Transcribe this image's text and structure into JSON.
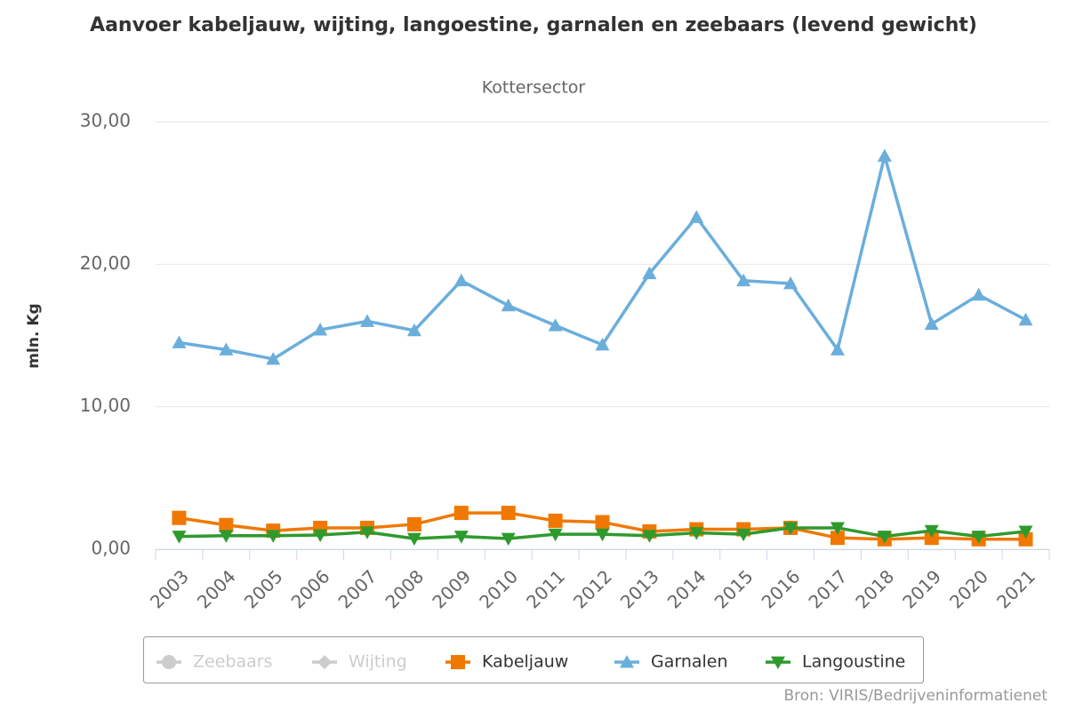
{
  "chart_data": {
    "type": "line",
    "title": "Aanvoer kabeljauw, wijting, langoestine, garnalen en zeebaars (levend gewicht)",
    "subtitle": "Kottersector",
    "y_label": "mln. Kg",
    "source": "Bron: VIRIS/Bedrijveninformatienet",
    "categories": [
      "2003",
      "2004",
      "2005",
      "2006",
      "2007",
      "2008",
      "2009",
      "2010",
      "2011",
      "2012",
      "2013",
      "2014",
      "2015",
      "2016",
      "2017",
      "2018",
      "2019",
      "2020",
      "2021"
    ],
    "ylim": [
      0,
      30
    ],
    "yticks": [
      {
        "value": 0,
        "label": "0,00"
      },
      {
        "value": 10,
        "label": "10,00"
      },
      {
        "value": 20,
        "label": "20,00"
      },
      {
        "value": 30,
        "label": "30,00"
      }
    ],
    "grid": true,
    "legend": "bottom",
    "series": [
      {
        "name": "Zeebaars",
        "marker": "circle",
        "color": "#cccccc",
        "visible": false
      },
      {
        "name": "Wijting",
        "marker": "diamond",
        "color": "#cccccc",
        "visible": false
      },
      {
        "name": "Kabeljauw",
        "marker": "square",
        "color": "#f07800",
        "visible": true,
        "values": [
          2.2,
          1.7,
          1.3,
          1.5,
          1.5,
          1.75,
          2.55,
          2.55,
          2.0,
          1.9,
          1.25,
          1.4,
          1.4,
          1.5,
          0.8,
          0.7,
          0.8,
          0.7,
          0.7
        ]
      },
      {
        "name": "Garnalen",
        "marker": "triangle",
        "color": "#6aaedc",
        "visible": true,
        "values": [
          14.5,
          14.0,
          13.35,
          15.4,
          16.0,
          15.35,
          18.85,
          17.1,
          15.7,
          14.35,
          19.35,
          23.3,
          18.85,
          18.65,
          14.0,
          27.6,
          15.8,
          17.85,
          16.1
        ]
      },
      {
        "name": "Langoustine",
        "marker": "triangle-down",
        "color": "#2e9a2e",
        "visible": true,
        "values": [
          0.9,
          0.95,
          0.95,
          1.0,
          1.2,
          0.75,
          0.9,
          0.75,
          1.05,
          1.05,
          0.95,
          1.15,
          1.05,
          1.5,
          1.5,
          0.9,
          1.3,
          0.9,
          1.25
        ]
      }
    ]
  }
}
